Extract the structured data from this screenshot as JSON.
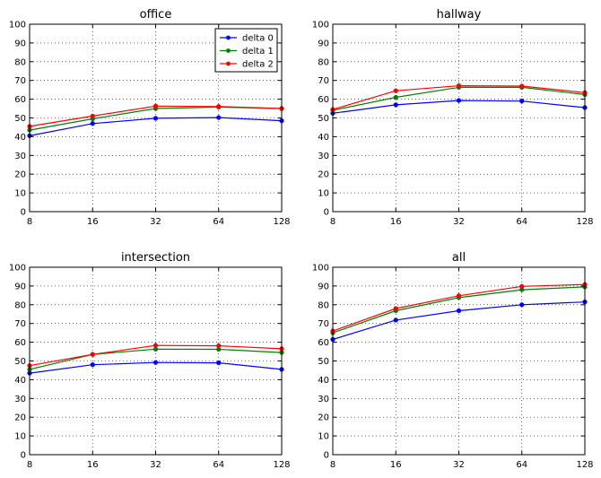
{
  "chart_data": [
    {
      "type": "line",
      "title": "office",
      "xscale": "log2",
      "x": [
        8,
        16,
        32,
        64,
        128
      ],
      "xticks": [
        "8",
        "16",
        "32",
        "64",
        "128"
      ],
      "yticks": [
        "0",
        "10",
        "20",
        "30",
        "40",
        "50",
        "60",
        "70",
        "80",
        "90",
        "100"
      ],
      "ylim": [
        0,
        100
      ],
      "grid": true,
      "legend": "top-right",
      "series": [
        {
          "name": "delta 0",
          "color": "#0000ff",
          "values": [
            40.5,
            47,
            49.8,
            50.2,
            48.5
          ]
        },
        {
          "name": "delta 1",
          "color": "#008000",
          "values": [
            43.5,
            49.5,
            55,
            55.8,
            55
          ]
        },
        {
          "name": "delta 2",
          "color": "#ff0000",
          "values": [
            45.5,
            51,
            56.3,
            56.1,
            55
          ]
        }
      ]
    },
    {
      "type": "line",
      "title": "hallway",
      "xscale": "log2",
      "x": [
        8,
        16,
        32,
        64,
        128
      ],
      "xticks": [
        "8",
        "16",
        "32",
        "64",
        "128"
      ],
      "yticks": [
        "0",
        "10",
        "20",
        "30",
        "40",
        "50",
        "60",
        "70",
        "80",
        "90",
        "100"
      ],
      "ylim": [
        0,
        100
      ],
      "grid": true,
      "series": [
        {
          "name": "delta 0",
          "color": "#0000ff",
          "values": [
            52.5,
            57,
            59.3,
            59,
            55.5
          ]
        },
        {
          "name": "delta 1",
          "color": "#008000",
          "values": [
            54,
            61,
            66.3,
            66.3,
            62.5
          ]
        },
        {
          "name": "delta 2",
          "color": "#ff0000",
          "values": [
            54.5,
            64.5,
            67.2,
            67,
            63.5
          ]
        }
      ]
    },
    {
      "type": "line",
      "title": "intersection",
      "xscale": "log2",
      "x": [
        8,
        16,
        32,
        64,
        128
      ],
      "xticks": [
        "8",
        "16",
        "32",
        "64",
        "128"
      ],
      "yticks": [
        "0",
        "10",
        "20",
        "30",
        "40",
        "50",
        "60",
        "70",
        "80",
        "90",
        "100"
      ],
      "ylim": [
        0,
        100
      ],
      "grid": true,
      "series": [
        {
          "name": "delta 0",
          "color": "#0000ff",
          "values": [
            43.5,
            48,
            49.2,
            49,
            45.5
          ]
        },
        {
          "name": "delta 1",
          "color": "#008000",
          "values": [
            45.5,
            53.5,
            56.3,
            56.2,
            54.5
          ]
        },
        {
          "name": "delta 2",
          "color": "#ff0000",
          "values": [
            47.5,
            53.5,
            58.3,
            58.1,
            56.5
          ]
        }
      ]
    },
    {
      "type": "line",
      "title": "all",
      "xscale": "log2",
      "x": [
        8,
        16,
        32,
        64,
        128
      ],
      "xticks": [
        "8",
        "16",
        "32",
        "64",
        "128"
      ],
      "yticks": [
        "0",
        "10",
        "20",
        "30",
        "40",
        "50",
        "60",
        "70",
        "80",
        "90",
        "100"
      ],
      "ylim": [
        0,
        100
      ],
      "grid": true,
      "series": [
        {
          "name": "delta 0",
          "color": "#0000ff",
          "values": [
            61.5,
            71.8,
            76.8,
            80,
            81.5
          ]
        },
        {
          "name": "delta 1",
          "color": "#008000",
          "values": [
            65,
            76.8,
            83.8,
            88,
            89.5
          ]
        },
        {
          "name": "delta 2",
          "color": "#ff0000",
          "values": [
            66,
            78,
            84.8,
            89.8,
            90.8
          ]
        }
      ]
    }
  ]
}
